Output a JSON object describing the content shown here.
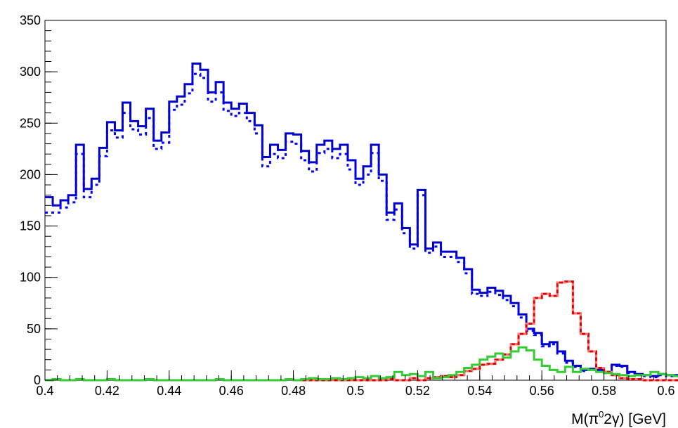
{
  "chart_data": {
    "type": "line",
    "xlabel": {
      "pre": "M(π",
      "sup": "0",
      "post": "2γ) [GeV]"
    },
    "ylabel": "",
    "xlim": [
      0.4,
      0.6
    ],
    "ylim": [
      0,
      350
    ],
    "bin_width": 0.0025,
    "x_ticks": [
      "0.4",
      "0.42",
      "0.44",
      "0.46",
      "0.48",
      "0.5",
      "0.52",
      "0.54",
      "0.56",
      "0.58",
      "0.6"
    ],
    "y_ticks": [
      "0",
      "50",
      "100",
      "150",
      "200",
      "250",
      "300",
      "350"
    ],
    "grid": false,
    "series": [
      {
        "color": "#0000cc",
        "style": "solid",
        "bins_start": 0.4,
        "values": [
          178,
          170,
          175,
          180,
          229,
          186,
          196,
          226,
          251,
          243,
          270,
          252,
          247,
          264,
          233,
          241,
          271,
          276,
          288,
          308,
          302,
          280,
          290,
          270,
          264,
          269,
          260,
          248,
          217,
          229,
          224,
          240,
          239,
          223,
          212,
          229,
          233,
          225,
          229,
          214,
          196,
          208,
          229,
          200,
          163,
          172,
          148,
          132,
          185,
          128,
          134,
          125,
          125,
          119,
          108,
          88,
          85,
          90,
          87,
          82,
          75,
          64,
          50,
          46,
          35,
          37,
          28,
          19,
          14,
          10,
          11,
          10,
          8,
          15,
          14,
          8,
          6,
          5,
          4,
          6,
          5,
          5,
          4,
          5,
          5,
          2,
          1,
          2,
          1,
          1
        ]
      },
      {
        "color": "#0000ff",
        "style": "dotted",
        "bins_start": 0.4,
        "values": [
          163,
          163,
          168,
          173,
          220,
          178,
          190,
          218,
          243,
          236,
          260,
          244,
          239,
          255,
          225,
          231,
          263,
          268,
          279,
          298,
          294,
          271,
          280,
          262,
          257,
          260,
          252,
          240,
          208,
          220,
          216,
          232,
          230,
          214,
          203,
          221,
          225,
          216,
          220,
          205,
          190,
          200,
          221,
          194,
          156,
          166,
          143,
          128,
          180,
          124,
          130,
          120,
          120,
          115,
          104,
          84,
          82,
          86,
          83,
          78,
          72,
          61,
          48,
          44,
          33,
          35,
          26,
          17,
          13,
          9,
          10,
          9,
          7,
          14,
          13,
          7,
          5,
          4,
          3,
          5,
          4,
          4,
          3,
          4,
          4,
          1,
          1,
          1,
          1,
          1
        ]
      },
      {
        "color": "#e00000",
        "style": "solid",
        "bins_start": 0.48,
        "values": [
          0,
          0,
          0,
          0,
          0,
          0,
          0,
          0,
          0,
          0,
          0,
          0,
          1,
          0,
          0,
          2,
          0,
          2,
          3,
          4,
          3,
          5,
          9,
          11,
          15,
          16,
          20,
          25,
          35,
          45,
          55,
          80,
          84,
          82,
          95,
          96,
          65,
          45,
          28,
          12,
          8,
          5,
          2,
          1,
          1,
          0,
          0,
          0,
          0,
          0,
          0,
          0,
          0,
          0,
          0,
          0,
          0,
          0
        ]
      },
      {
        "color": "#ff7777",
        "style": "dotted",
        "bins_start": 0.48,
        "values": [
          0,
          0,
          0,
          0,
          0,
          0,
          0,
          0,
          0,
          0,
          0,
          0,
          1,
          0,
          0,
          2,
          0,
          2,
          3,
          4,
          3,
          5,
          9,
          11,
          15,
          16,
          20,
          25,
          35,
          45,
          55,
          80,
          84,
          82,
          95,
          96,
          65,
          45,
          28,
          12,
          8,
          5,
          2,
          1,
          1,
          0,
          0,
          0,
          0,
          0,
          0,
          0,
          0,
          0,
          0,
          0,
          0,
          0
        ]
      },
      {
        "color": "#33cc33",
        "style": "solid",
        "bins_start": 0.4,
        "values": [
          0,
          1,
          0,
          0,
          1,
          0,
          0,
          0,
          1,
          0,
          0,
          0,
          0,
          1,
          0,
          0,
          0,
          0,
          0,
          0,
          0,
          0,
          1,
          0,
          0,
          0,
          0,
          0,
          0,
          0,
          0,
          1,
          0,
          1,
          2,
          1,
          1,
          2,
          1,
          2,
          3,
          2,
          4,
          2,
          3,
          8,
          5,
          6,
          4,
          8,
          2,
          3,
          5,
          8,
          12,
          15,
          20,
          23,
          26,
          22,
          28,
          32,
          29,
          20,
          14,
          10,
          8,
          13,
          8,
          11,
          10,
          8,
          7,
          6,
          5,
          4,
          5,
          5,
          8,
          6,
          5,
          4,
          4,
          4,
          3,
          4,
          3,
          4,
          5,
          3
        ]
      }
    ]
  }
}
